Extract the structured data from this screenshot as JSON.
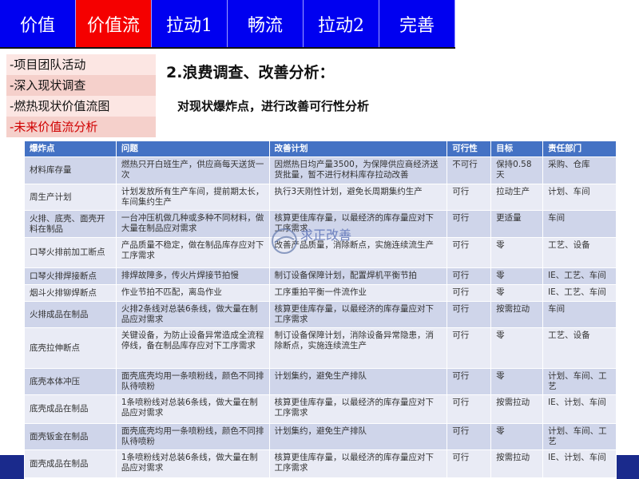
{
  "nav": {
    "tabs": [
      "价值",
      "价值流",
      "拉动1",
      "畅流",
      "拉动2",
      "完善"
    ],
    "active": 1
  },
  "sidebar": {
    "items": [
      "-项目团队活动",
      "-深入现状调查",
      "-燃热现状价值流图",
      "-未来价值流分析"
    ],
    "active": 3
  },
  "title": "2.浪费调查、改善分析：",
  "subtitle": "对现状爆炸点，进行改善可行性分析",
  "watermark": "求正改善",
  "table": {
    "headers": [
      "爆炸点",
      "问题",
      "改善计划",
      "可行性",
      "目标",
      "责任部门"
    ],
    "rows": [
      [
        "材料库存量",
        "燃热只开白班生产，供应商每天送货一次",
        "因燃热日均产量3500，为保障供应商经济送货批量，暂不进行材料库存拉动改善",
        "不可行",
        "保持0.58天",
        "采购、仓库"
      ],
      [
        "周生产计划",
        "计划发放所有生产车间，提前期太长，车间集约生产",
        "执行3天刚性计划，避免长周期集约生产",
        "可行",
        "拉动生产",
        "计划、车间"
      ],
      [
        "火排、底壳、面壳开料在制品",
        "一台冲压机做几种或多种不同材料，做大量在制品应对需求",
        "核算更佳库存量，以最经济的库存量应对下工序需求",
        "可行",
        "更适量",
        "车间"
      ],
      [
        "口琴火排前加工断点",
        "产品质量不稳定，做在制品库存应对下工序需求",
        "改善产品质量，消除断点，实施连续流生产",
        "可行",
        "零",
        "工艺、设备"
      ],
      [
        "口琴火排焊接断点",
        "排焊故障多，传火片焊接节拍慢",
        "制订设备保障计划，配置焊机平衡节拍",
        "可行",
        "零",
        "IE、工艺、车间"
      ],
      [
        "烟斗火排铆焊断点",
        "作业节拍不匹配，离岛作业",
        "工序重拍平衡一件流作业",
        "可行",
        "零",
        "IE、工艺、车间"
      ],
      [
        "火排成品在制品",
        "火排2条线对总装6条线，做大量在制品应对需求",
        "核算更佳库存量，以最经济的库存量应对下工序需求",
        "可行",
        "按需拉动",
        "车间"
      ],
      [
        "底壳拉伸断点",
        "关键设备，为防止设备异常造成全流程停线，备在制品库存应对下工序需求",
        "制订设备保障计划，消除设备异常隐患，消除断点，实施连续流生产",
        "可行",
        "零",
        "工艺、设备"
      ],
      [
        "底壳本体冲压",
        "面壳底壳均用一条喷粉线，颜色不同排队待喷粉",
        "计划集约，避免生产排队",
        "可行",
        "零",
        "计划、车间、工艺"
      ],
      [
        "底壳成品在制品",
        "1条喷粉线对总装6条线，做大量在制品应对需求",
        "核算更佳库存量，以最经济的库存量应对下工序需求",
        "可行",
        "按需拉动",
        "IE、计划、车间"
      ],
      [
        "面壳钣金在制品",
        "面壳底壳均用一条喷粉线，颜色不同排队待喷粉",
        "计划集约，避免生产排队",
        "可行",
        "零",
        "计划、车间、工艺"
      ],
      [
        "面壳成品在制品",
        "1条喷粉线对总装6条线，做大量在制品应对需求",
        "核算更佳库存量，以最经济的库存量应对下工序需求",
        "可行",
        "按需拉动",
        "IE、计划、车间"
      ]
    ]
  },
  "colors": {
    "nav": "#0000f0",
    "nav_active": "#f50000",
    "header": "#4472c4",
    "row_a": "#cfd5ea",
    "row_b": "#e9ebf5"
  }
}
